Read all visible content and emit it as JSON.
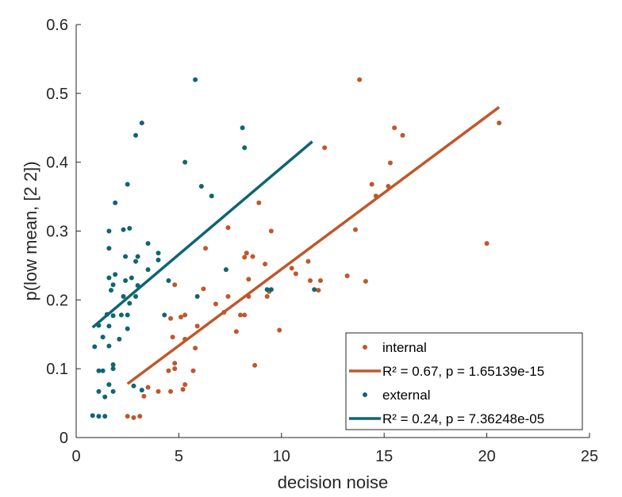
{
  "chart_data": {
    "type": "scatter",
    "xlabel": "decision noise",
    "ylabel": "p(low mean, [2 2])",
    "xlim": [
      0,
      25
    ],
    "ylim": [
      0,
      0.6
    ],
    "xticks": [
      0,
      5,
      10,
      15,
      20,
      25
    ],
    "yticks": [
      0,
      0.1,
      0.2,
      0.3,
      0.4,
      0.5,
      0.6
    ],
    "xtick_labels": [
      "0",
      "5",
      "10",
      "15",
      "20",
      "25"
    ],
    "ytick_labels": [
      "0",
      "0.1",
      "0.2",
      "0.3",
      "0.4",
      "0.5",
      "0.6"
    ],
    "grid": false,
    "legend_position": "bottom-right",
    "series": [
      {
        "name": "internal",
        "color": "#c0572b",
        "points": [
          [
            2.5,
            0.031
          ],
          [
            2.8,
            0.029
          ],
          [
            3.1,
            0.031
          ],
          [
            3.3,
            0.06
          ],
          [
            3.5,
            0.073
          ],
          [
            4.0,
            0.067
          ],
          [
            4.6,
            0.067
          ],
          [
            5.2,
            0.07
          ],
          [
            5.3,
            0.077
          ],
          [
            4.5,
            0.097
          ],
          [
            4.8,
            0.1
          ],
          [
            5.3,
            0.143
          ],
          [
            4.7,
            0.146
          ],
          [
            4.8,
            0.108
          ],
          [
            5.7,
            0.097
          ],
          [
            5.8,
            0.13
          ],
          [
            5.9,
            0.162
          ],
          [
            4.8,
            0.222
          ],
          [
            4.6,
            0.173
          ],
          [
            5.1,
            0.175
          ],
          [
            5.3,
            0.178
          ],
          [
            6.2,
            0.216
          ],
          [
            6.3,
            0.275
          ],
          [
            6.8,
            0.194
          ],
          [
            7.2,
            0.182
          ],
          [
            7.4,
            0.205
          ],
          [
            7.4,
            0.305
          ],
          [
            7.8,
            0.154
          ],
          [
            8.0,
            0.178
          ],
          [
            8.2,
            0.178
          ],
          [
            8.2,
            0.262
          ],
          [
            8.4,
            0.23
          ],
          [
            8.4,
            0.205
          ],
          [
            8.3,
            0.268
          ],
          [
            8.6,
            0.263
          ],
          [
            8.7,
            0.105
          ],
          [
            8.9,
            0.341
          ],
          [
            9.2,
            0.252
          ],
          [
            9.5,
            0.3
          ],
          [
            9.9,
            0.156
          ],
          [
            9.4,
            0.212
          ],
          [
            9.3,
            0.205
          ],
          [
            10.5,
            0.246
          ],
          [
            10.7,
            0.238
          ],
          [
            11.3,
            0.256
          ],
          [
            11.4,
            0.228
          ],
          [
            11.8,
            0.214
          ],
          [
            11.9,
            0.228
          ],
          [
            12.1,
            0.421
          ],
          [
            13.2,
            0.235
          ],
          [
            13.6,
            0.302
          ],
          [
            14.1,
            0.227
          ],
          [
            13.8,
            0.52
          ],
          [
            14.4,
            0.368
          ],
          [
            14.6,
            0.351
          ],
          [
            15.2,
            0.365
          ],
          [
            15.3,
            0.399
          ],
          [
            15.5,
            0.45
          ],
          [
            15.9,
            0.439
          ],
          [
            20.0,
            0.282
          ],
          [
            20.6,
            0.457
          ]
        ],
        "fit": {
          "label": "R² = 0.67, p  = 1.65139e-15",
          "x": [
            2.5,
            20.6
          ],
          "y": [
            0.078,
            0.48
          ]
        }
      },
      {
        "name": "external",
        "color": "#0f6572",
        "points": [
          [
            0.8,
            0.032
          ],
          [
            1.1,
            0.031
          ],
          [
            1.4,
            0.031
          ],
          [
            1.1,
            0.067
          ],
          [
            1.4,
            0.059
          ],
          [
            1.6,
            0.077
          ],
          [
            1.8,
            0.067
          ],
          [
            1.1,
            0.097
          ],
          [
            1.3,
            0.097
          ],
          [
            0.9,
            0.132
          ],
          [
            1.3,
            0.146
          ],
          [
            1.6,
            0.133
          ],
          [
            1.8,
            0.1
          ],
          [
            1.8,
            0.106
          ],
          [
            2.1,
            0.143
          ],
          [
            1.1,
            0.163
          ],
          [
            1.5,
            0.179
          ],
          [
            1.6,
            0.162
          ],
          [
            1.8,
            0.177
          ],
          [
            1.8,
            0.222
          ],
          [
            2.2,
            0.178
          ],
          [
            2.5,
            0.158
          ],
          [
            2.3,
            0.205
          ],
          [
            2.5,
            0.178
          ],
          [
            2.6,
            0.195
          ],
          [
            1.6,
            0.232
          ],
          [
            1.9,
            0.237
          ],
          [
            1.7,
            0.214
          ],
          [
            2.4,
            0.228
          ],
          [
            2.7,
            0.232
          ],
          [
            2.9,
            0.205
          ],
          [
            3.0,
            0.221
          ],
          [
            2.4,
            0.263
          ],
          [
            2.9,
            0.256
          ],
          [
            3.0,
            0.263
          ],
          [
            2.3,
            0.302
          ],
          [
            2.6,
            0.304
          ],
          [
            1.6,
            0.275
          ],
          [
            1.6,
            0.3
          ],
          [
            1.9,
            0.341
          ],
          [
            2.5,
            0.368
          ],
          [
            2.9,
            0.439
          ],
          [
            3.2,
            0.457
          ],
          [
            3.5,
            0.282
          ],
          [
            3.5,
            0.244
          ],
          [
            4.0,
            0.258
          ],
          [
            4.0,
            0.268
          ],
          [
            4.3,
            0.178
          ],
          [
            4.5,
            0.228
          ],
          [
            3.2,
            0.069
          ],
          [
            2.8,
            0.075
          ],
          [
            5.3,
            0.4
          ],
          [
            5.8,
            0.52
          ],
          [
            6.1,
            0.365
          ],
          [
            6.6,
            0.351
          ],
          [
            5.9,
            0.205
          ],
          [
            7.3,
            0.244
          ],
          [
            8.1,
            0.45
          ],
          [
            8.2,
            0.421
          ],
          [
            9.5,
            0.215
          ],
          [
            9.3,
            0.215
          ],
          [
            11.6,
            0.215
          ]
        ],
        "fit": {
          "label": "R² = 0.24, p  = 7.36248e-05",
          "x": [
            0.8,
            11.5
          ],
          "y": [
            0.16,
            0.43
          ]
        }
      }
    ]
  }
}
